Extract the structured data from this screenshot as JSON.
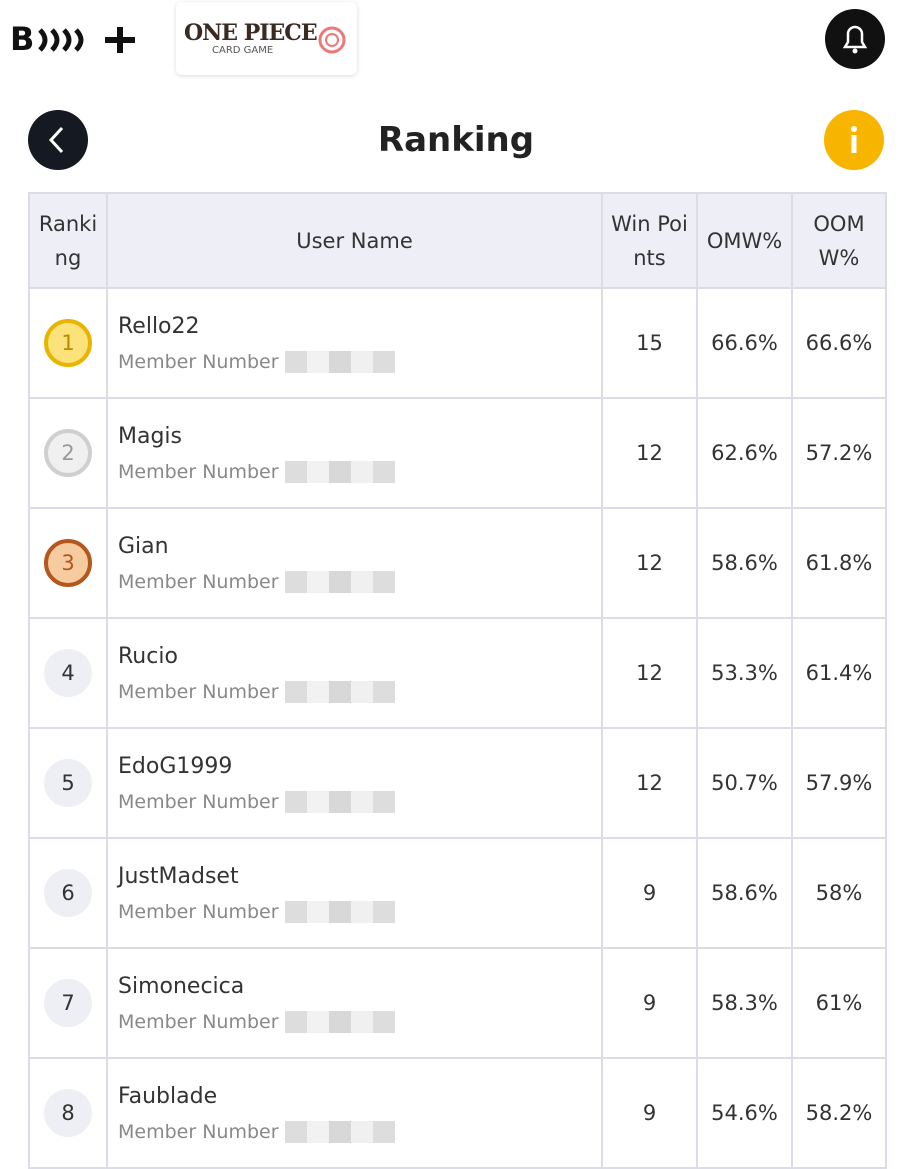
{
  "header": {
    "logo_text": "ONE PIECE",
    "logo_subtext": "CARD GAME",
    "title": "Ranking"
  },
  "table": {
    "columns": [
      "Ranking",
      "User Name",
      "Win Points",
      "OMW%",
      "OOMW%"
    ],
    "member_label": "Member Number",
    "rows": [
      [
        "1",
        "Rello22",
        "15",
        "66.6%",
        "66.6%"
      ],
      [
        "2",
        "Magis",
        "12",
        "62.6%",
        "57.2%"
      ],
      [
        "3",
        "Gian",
        "12",
        "58.6%",
        "61.8%"
      ],
      [
        "4",
        "Rucio",
        "12",
        "53.3%",
        "61.4%"
      ],
      [
        "5",
        "EdoG1999",
        "12",
        "50.7%",
        "57.9%"
      ],
      [
        "6",
        "JustMadset",
        "9",
        "58.6%",
        "58%"
      ],
      [
        "7",
        "Simonecica",
        "9",
        "58.3%",
        "61%"
      ],
      [
        "8",
        "Faublade",
        "9",
        "54.6%",
        "58.2%"
      ]
    ]
  }
}
